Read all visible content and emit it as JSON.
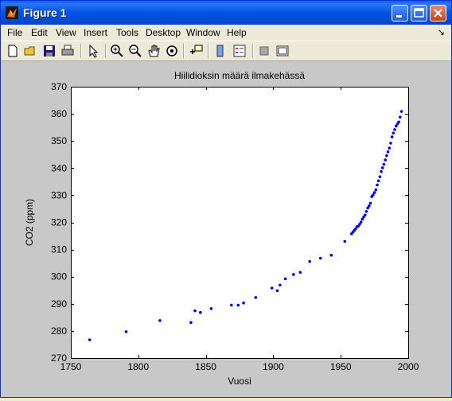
{
  "window": {
    "title": "Figure 1"
  },
  "menu": {
    "items": [
      "File",
      "Edit",
      "View",
      "Insert",
      "Tools",
      "Desktop",
      "Window",
      "Help"
    ]
  },
  "toolbar": {
    "icons": [
      "new-icon",
      "open-icon",
      "save-icon",
      "print-icon",
      "pointer-icon",
      "zoom-in-icon",
      "zoom-out-icon",
      "pan-icon",
      "rotate-icon",
      "datacursor-icon",
      "colorbar-icon",
      "legend-icon",
      "hide-plot-tools-icon",
      "show-plot-tools-icon"
    ]
  },
  "chart_data": {
    "type": "scatter",
    "title": "Hiilidioksin määrä ilmakehässä",
    "xlabel": "Vuosi",
    "ylabel": "CO2 (ppm)",
    "xlim": [
      1750,
      2000
    ],
    "ylim": [
      270,
      370
    ],
    "xticks": [
      1750,
      1800,
      1850,
      1900,
      1950,
      2000
    ],
    "yticks": [
      270,
      280,
      290,
      300,
      310,
      320,
      330,
      340,
      350,
      360,
      370
    ],
    "grid": false,
    "marker_color": "#0000ff",
    "x": [
      1764,
      1791,
      1816,
      1839,
      1842,
      1846,
      1854,
      1869,
      1874,
      1878,
      1887,
      1899,
      1903,
      1905,
      1909,
      1915,
      1920,
      1927,
      1935,
      1943,
      1953,
      1958,
      1959,
      1960,
      1961,
      1962,
      1963,
      1964,
      1965,
      1966,
      1967,
      1968,
      1969,
      1970,
      1971,
      1972,
      1973,
      1974,
      1975,
      1976,
      1977,
      1978,
      1979,
      1980,
      1981,
      1982,
      1983,
      1984,
      1985,
      1986,
      1987,
      1988,
      1989,
      1990,
      1991,
      1992,
      1993,
      1994,
      1995
    ],
    "y": [
      276.7,
      279.7,
      283.8,
      283.1,
      287.4,
      286.8,
      288.2,
      289.5,
      289.5,
      290.3,
      292.3,
      295.8,
      294.8,
      296.9,
      299.2,
      300.8,
      301.6,
      305.6,
      306.8,
      307.9,
      313.0,
      315.8,
      316.4,
      317.0,
      317.6,
      318.4,
      318.6,
      319.3,
      320.1,
      321.2,
      322.0,
      322.7,
      324.0,
      325.3,
      326.1,
      327.1,
      329.5,
      330.1,
      331.0,
      332.0,
      333.8,
      335.3,
      336.8,
      338.7,
      340.1,
      341.4,
      343.0,
      344.6,
      346.0,
      347.4,
      349.2,
      351.5,
      352.9,
      354.2,
      355.5,
      356.3,
      357.0,
      358.8,
      360.9
    ]
  }
}
